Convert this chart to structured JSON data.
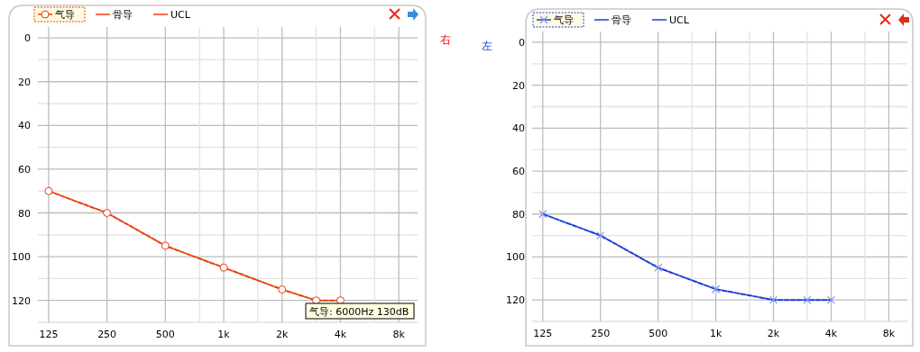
{
  "chart_data": [
    {
      "type": "line",
      "log": "x",
      "grid": true,
      "legend": "top left",
      "line_style": "dashed",
      "x": [
        125,
        250,
        500,
        1000,
        2000,
        3000,
        4000
      ],
      "xlim": [
        110,
        10000
      ],
      "ylim": [
        130,
        -5
      ],
      "xticks": [
        125,
        250,
        500,
        {
          "value": 750,
          "label": null
        },
        {
          "value": 1000,
          "label": "1k"
        },
        {
          "value": 1500,
          "label": null
        },
        {
          "value": 2000,
          "label": "2k"
        },
        {
          "value": 3000,
          "label": null
        },
        {
          "value": 4000,
          "label": "4k"
        },
        {
          "value": 6000,
          "label": null
        },
        {
          "value": 8000,
          "label": "8k"
        }
      ],
      "yticks": [
        0,
        {
          "value": 10,
          "label": null
        },
        20,
        {
          "value": 30,
          "label": null
        },
        40,
        {
          "value": 50,
          "label": null
        },
        60,
        {
          "value": 70,
          "label": null
        },
        80,
        {
          "value": 90,
          "label": null
        },
        100,
        {
          "value": 110,
          "label": null
        },
        120,
        {
          "value": 130,
          "label": null
        }
      ],
      "series": [
        {
          "name": "气导",
          "color": "#e8400c",
          "marker": "circle",
          "values": [
            70,
            80,
            95,
            105,
            115,
            120,
            120
          ]
        },
        {
          "name": "骨导",
          "color": "#e8400c",
          "marker": "none",
          "values": [
            null,
            null,
            null,
            null,
            null,
            null,
            null
          ]
        },
        {
          "name": "UCL",
          "color": "#e8400c",
          "marker": "none",
          "values": [
            null,
            null,
            null,
            null,
            null,
            null,
            null
          ]
        }
      ],
      "annotations": [
        "气导: 6000Hz 130dB",
        "右"
      ]
    },
    {
      "type": "line",
      "log": "x",
      "grid": true,
      "legend": "top left",
      "line_style": "dashed",
      "x": [
        125,
        250,
        500,
        1000,
        2000,
        3000,
        4000
      ],
      "xlim": [
        110,
        10000
      ],
      "ylim": [
        130,
        -5
      ],
      "xticks": [
        125,
        250,
        500,
        {
          "value": 750,
          "label": null
        },
        {
          "value": 1000,
          "label": "1k"
        },
        {
          "value": 1500,
          "label": null
        },
        {
          "value": 2000,
          "label": "2k"
        },
        {
          "value": 3000,
          "label": null
        },
        {
          "value": 4000,
          "label": "4k"
        },
        {
          "value": 6000,
          "label": null
        },
        {
          "value": 8000,
          "label": "8k"
        }
      ],
      "yticks": [
        0,
        {
          "value": 10,
          "label": null
        },
        20,
        {
          "value": 30,
          "label": null
        },
        40,
        {
          "value": 50,
          "label": null
        },
        60,
        {
          "value": 70,
          "label": null
        },
        80,
        {
          "value": 90,
          "label": null
        },
        100,
        {
          "value": 110,
          "label": null
        },
        120,
        {
          "value": 130,
          "label": null
        }
      ],
      "series": [
        {
          "name": "气导",
          "color": "#1f3fd6",
          "marker": "cross",
          "values": [
            80,
            90,
            105,
            115,
            120,
            120,
            120
          ]
        },
        {
          "name": "骨导",
          "color": "#1f3fd6",
          "marker": "none",
          "values": [
            null,
            null,
            null,
            null,
            null,
            null,
            null
          ]
        },
        {
          "name": "UCL",
          "color": "#1f3fd6",
          "marker": "none",
          "values": [
            null,
            null,
            null,
            null,
            null,
            null,
            null
          ]
        }
      ],
      "annotations": [
        "左"
      ]
    }
  ]
}
